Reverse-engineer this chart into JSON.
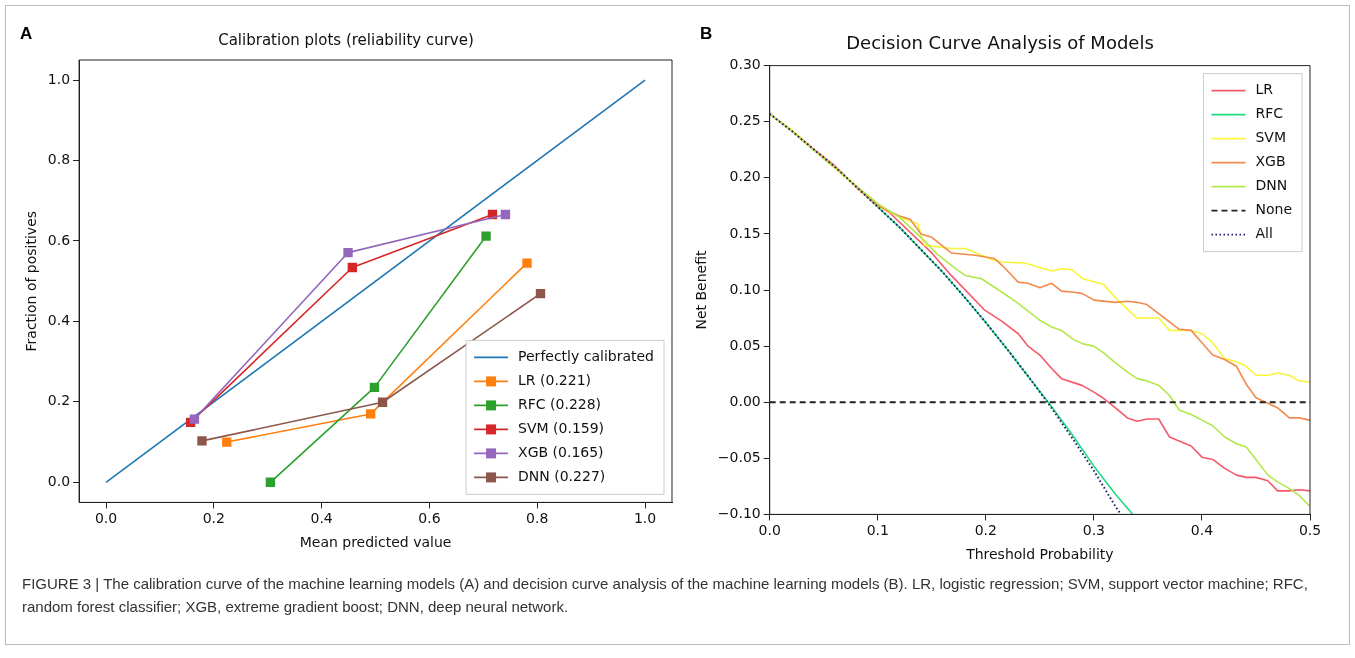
{
  "chart_data": [
    {
      "type": "line",
      "title": "Calibration plots (reliability curve)",
      "xlabel": "Mean predicted value",
      "ylabel": "Fraction of positives",
      "annotations": [
        "A",
        "FIGURE 3 | The calibration curve of the machine learning models (A) and decision curve analysis of the machine learning models (B). LR, logistic regression; SVM, support vector machine; RFC, random forest classifier; XGB, extreme gradient boost; DNN, deep neural network."
      ],
      "xlim": [
        -0.05,
        1.05
      ],
      "ylim": [
        -0.05,
        1.05
      ],
      "xticks": [
        {
          "value": 0,
          "label": "0.0"
        },
        {
          "value": 0.2,
          "label": "0.2"
        },
        {
          "value": 0.4,
          "label": "0.4"
        },
        {
          "value": 0.6,
          "label": "0.6"
        },
        {
          "value": 0.8,
          "label": "0.8"
        },
        {
          "value": 1,
          "label": "1.0"
        }
      ],
      "yticks": [
        {
          "value": 0,
          "label": "0.0"
        },
        {
          "value": 0.2,
          "label": "0.2"
        },
        {
          "value": 0.4,
          "label": "0.4"
        },
        {
          "value": 0.6,
          "label": "0.6"
        },
        {
          "value": 0.8,
          "label": "0.8"
        },
        {
          "value": 1,
          "label": "1.0"
        }
      ],
      "grid": false,
      "legend": "bottom right",
      "marker": "square",
      "series": [
        {
          "name": "Perfectly calibrated",
          "color": "#1f77b4",
          "marker": "none",
          "x": [
            0,
            1
          ],
          "values": [
            0,
            1
          ]
        },
        {
          "name": "LR (0.221)",
          "color": "#ff7f0e",
          "x": [
            0.224,
            0.491,
            0.781
          ],
          "values": [
            0.1,
            0.17,
            0.545
          ]
        },
        {
          "name": "RFC (0.228)",
          "color": "#2ca02c",
          "x": [
            0.305,
            0.498,
            0.705
          ],
          "values": [
            0.0,
            0.236,
            0.612
          ]
        },
        {
          "name": "SVM (0.159)",
          "color": "#d62728",
          "x": [
            0.157,
            0.457,
            0.717
          ],
          "values": [
            0.149,
            0.534,
            0.666
          ]
        },
        {
          "name": "XGB (0.165)",
          "color": "#9467bd",
          "x": [
            0.164,
            0.449,
            0.741
          ],
          "values": [
            0.157,
            0.571,
            0.666
          ]
        },
        {
          "name": "DNN (0.227)",
          "color": "#8c564b",
          "x": [
            0.178,
            0.513,
            0.806
          ],
          "values": [
            0.103,
            0.199,
            0.469
          ]
        }
      ]
    },
    {
      "type": "line",
      "title": "Decision Curve Analysis of Models",
      "xlabel": "Threshold Probability",
      "ylabel": "Net Benefit",
      "annotations": [
        "B"
      ],
      "xlim": [
        0,
        0.5
      ],
      "ylim": [
        -0.1,
        0.3
      ],
      "xticks": [
        {
          "value": 0,
          "label": "0.0"
        },
        {
          "value": 0.1,
          "label": "0.1"
        },
        {
          "value": 0.2,
          "label": "0.2"
        },
        {
          "value": 0.3,
          "label": "0.3"
        },
        {
          "value": 0.4,
          "label": "0.4"
        },
        {
          "value": 0.5,
          "label": "0.5"
        }
      ],
      "yticks": [
        {
          "value": -0.1,
          "label": "−0.10"
        },
        {
          "value": -0.05,
          "label": "−0.05"
        },
        {
          "value": 0,
          "label": "0.00"
        },
        {
          "value": 0.05,
          "label": "0.05"
        },
        {
          "value": 0.1,
          "label": "0.10"
        },
        {
          "value": 0.15,
          "label": "0.15"
        },
        {
          "value": 0.2,
          "label": "0.20"
        },
        {
          "value": 0.25,
          "label": "0.25"
        },
        {
          "value": 0.3,
          "label": "0.30"
        }
      ],
      "grid": false,
      "legend": "top right",
      "marker": "none",
      "series": [
        {
          "name": "LR",
          "color": "#f5596b",
          "x": [
            0,
            0.02,
            0.04,
            0.06,
            0.08,
            0.1,
            0.112,
            0.149,
            0.168,
            0.199,
            0.215,
            0.23,
            0.239,
            0.25,
            0.261,
            0.27,
            0.289,
            0.3,
            0.308,
            0.32,
            0.331,
            0.34,
            0.349,
            0.36,
            0.37,
            0.39,
            0.4,
            0.41,
            0.421,
            0.432,
            0.441,
            0.45,
            0.461,
            0.47,
            0.481,
            0.49,
            0.5
          ],
          "values": [
            0.257,
            0.242,
            0.226,
            0.21,
            0.192,
            0.176,
            0.168,
            0.134,
            0.113,
            0.082,
            0.072,
            0.061,
            0.05,
            0.042,
            0.03,
            0.021,
            0.015,
            0.009,
            0.004,
            -0.005,
            -0.014,
            -0.017,
            -0.015,
            -0.015,
            -0.031,
            -0.039,
            -0.049,
            -0.051,
            -0.059,
            -0.065,
            -0.067,
            -0.067,
            -0.07,
            -0.079,
            -0.079,
            -0.078,
            -0.079
          ]
        },
        {
          "name": "RFC",
          "color": "#1fdc80",
          "x": [
            0.08,
            0.1,
            0.12,
            0.14,
            0.16,
            0.18,
            0.2,
            0.22,
            0.24,
            0.26,
            0.28,
            0.3,
            0.32,
            0.336
          ],
          "values": [
            0.192,
            0.174,
            0.156,
            0.136,
            0.116,
            0.094,
            0.071,
            0.047,
            0.022,
            -0.003,
            -0.029,
            -0.057,
            -0.082,
            -0.1
          ]
        },
        {
          "name": "SVM",
          "color": "#f7f53c",
          "x": [
            0,
            0.02,
            0.04,
            0.06,
            0.08,
            0.1,
            0.12,
            0.137,
            0.143,
            0.168,
            0.181,
            0.206,
            0.215,
            0.236,
            0.261,
            0.27,
            0.28,
            0.29,
            0.309,
            0.322,
            0.34,
            0.349,
            0.36,
            0.37,
            0.39,
            0.4,
            0.41,
            0.421,
            0.432,
            0.441,
            0.45,
            0.461,
            0.47,
            0.481,
            0.49,
            0.5
          ],
          "values": [
            0.257,
            0.243,
            0.226,
            0.209,
            0.192,
            0.175,
            0.165,
            0.159,
            0.14,
            0.137,
            0.137,
            0.127,
            0.125,
            0.124,
            0.117,
            0.119,
            0.118,
            0.11,
            0.105,
            0.091,
            0.075,
            0.075,
            0.075,
            0.064,
            0.064,
            0.061,
            0.053,
            0.039,
            0.036,
            0.032,
            0.024,
            0.024,
            0.026,
            0.024,
            0.019,
            0.018
          ]
        },
        {
          "name": "XGB",
          "color": "#f28a4c",
          "x": [
            0,
            0.02,
            0.04,
            0.06,
            0.08,
            0.1,
            0.12,
            0.13,
            0.14,
            0.15,
            0.168,
            0.19,
            0.208,
            0.215,
            0.23,
            0.239,
            0.25,
            0.261,
            0.27,
            0.281,
            0.289,
            0.3,
            0.32,
            0.331,
            0.34,
            0.349,
            0.36,
            0.379,
            0.39,
            0.4,
            0.41,
            0.421,
            0.432,
            0.441,
            0.45,
            0.461,
            0.47,
            0.481,
            0.49,
            0.5
          ],
          "values": [
            0.257,
            0.242,
            0.226,
            0.211,
            0.192,
            0.175,
            0.166,
            0.163,
            0.15,
            0.147,
            0.133,
            0.131,
            0.128,
            0.122,
            0.107,
            0.106,
            0.102,
            0.106,
            0.099,
            0.098,
            0.097,
            0.091,
            0.089,
            0.09,
            0.089,
            0.087,
            0.079,
            0.065,
            0.064,
            0.053,
            0.042,
            0.038,
            0.032,
            0.016,
            0.004,
            -0.001,
            -0.005,
            -0.014,
            -0.014,
            -0.016
          ]
        },
        {
          "name": "DNN",
          "color": "#b3e84a",
          "x": [
            0,
            0.02,
            0.04,
            0.06,
            0.08,
            0.1,
            0.12,
            0.143,
            0.156,
            0.172,
            0.181,
            0.196,
            0.215,
            0.23,
            0.25,
            0.261,
            0.27,
            0.281,
            0.29,
            0.3,
            0.309,
            0.32,
            0.331,
            0.34,
            0.349,
            0.36,
            0.37,
            0.379,
            0.39,
            0.4,
            0.41,
            0.421,
            0.432,
            0.441,
            0.45,
            0.461,
            0.47,
            0.481,
            0.49,
            0.5
          ],
          "values": [
            0.257,
            0.242,
            0.225,
            0.209,
            0.193,
            0.177,
            0.165,
            0.144,
            0.131,
            0.119,
            0.113,
            0.11,
            0.098,
            0.088,
            0.073,
            0.067,
            0.064,
            0.056,
            0.052,
            0.05,
            0.044,
            0.035,
            0.027,
            0.021,
            0.019,
            0.015,
            0.006,
            -0.007,
            -0.011,
            -0.016,
            -0.021,
            -0.031,
            -0.037,
            -0.04,
            -0.051,
            -0.065,
            -0.071,
            -0.077,
            -0.083,
            -0.093
          ]
        },
        {
          "name": "None",
          "color": "#222222",
          "line_style": "dashed",
          "x": [
            0,
            0.5
          ],
          "values": [
            0,
            0
          ]
        },
        {
          "name": "All",
          "color": "#1c1c70",
          "line_style": "dotted",
          "x": [
            0,
            0.02,
            0.04,
            0.06,
            0.08,
            0.1,
            0.12,
            0.14,
            0.16,
            0.18,
            0.2,
            0.22,
            0.24,
            0.26,
            0.28,
            0.3,
            0.32,
            0.325
          ],
          "values": [
            0.257,
            0.242,
            0.226,
            0.21,
            0.192,
            0.174,
            0.156,
            0.136,
            0.116,
            0.094,
            0.071,
            0.047,
            0.022,
            -0.004,
            -0.032,
            -0.061,
            -0.093,
            -0.1
          ]
        }
      ]
    }
  ]
}
